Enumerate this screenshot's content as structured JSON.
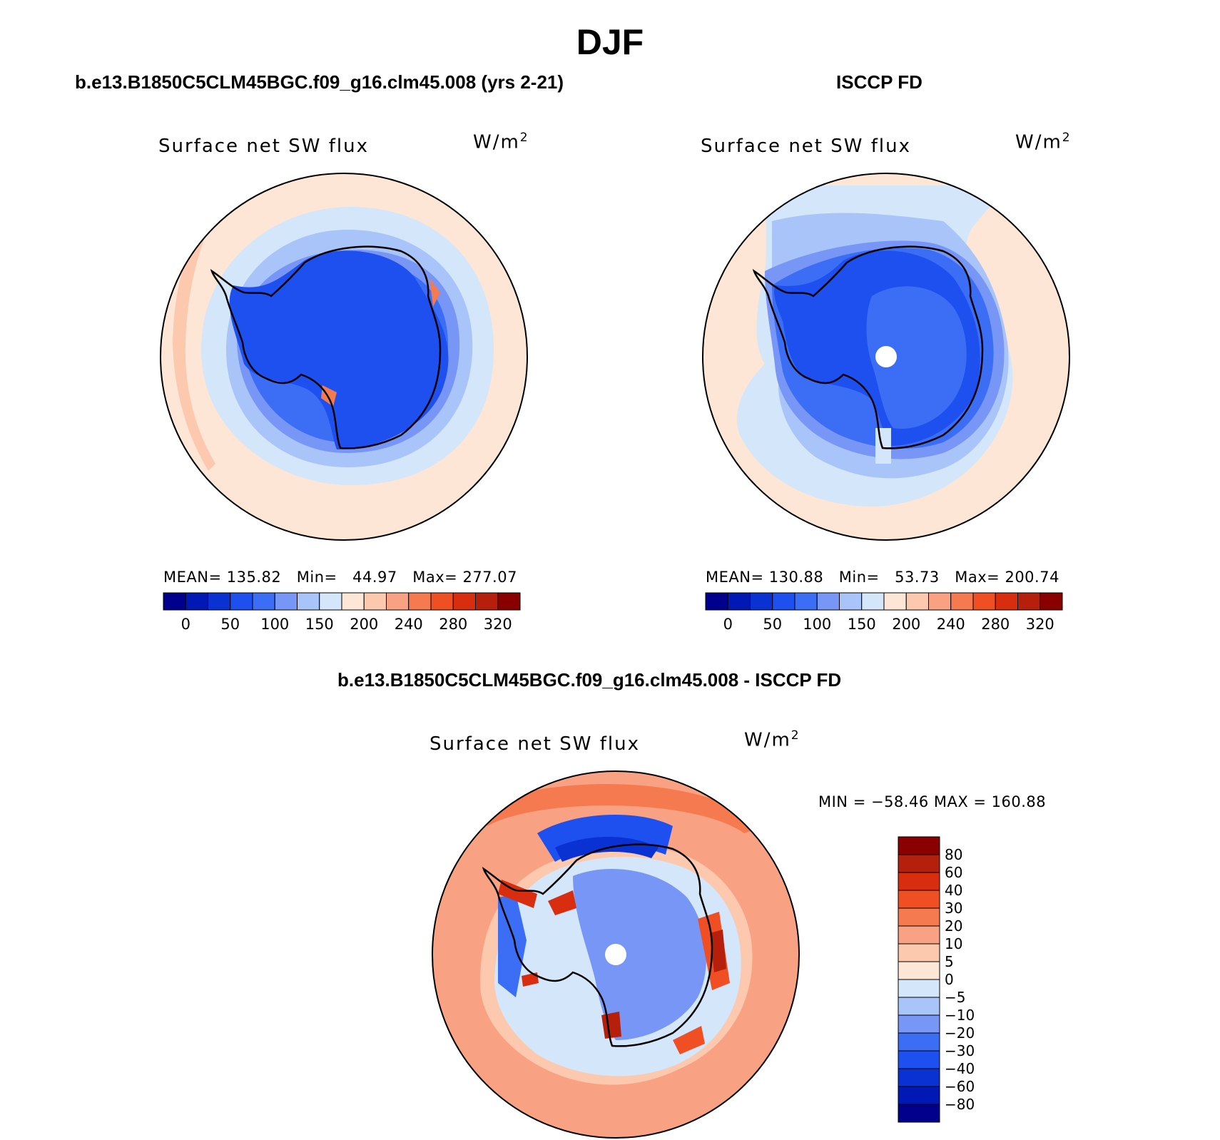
{
  "figure": {
    "title": "DJF"
  },
  "panels": [
    {
      "case_title": "b.e13.B1850C5CLM45BGC.f09_g16.clm45.008 (yrs 2-21)",
      "variable": "Surface net SW flux",
      "units_base": "W/m",
      "units_exp": "2",
      "stats": "MEAN= 135.82   Min=   44.97   Max= 277.07"
    },
    {
      "case_title": "ISCCP FD",
      "variable": "Surface net SW flux",
      "units_base": "W/m",
      "units_exp": "2",
      "stats": "MEAN= 130.88   Min=   53.73   Max= 200.74"
    },
    {
      "case_title": "b.e13.B1850C5CLM45BGC.f09_g16.clm45.008 - ISCCP FD",
      "variable": "Surface net SW flux",
      "units_base": "W/m",
      "units_exp": "2",
      "stats": "MIN = −58.46 MAX = 160.88"
    }
  ],
  "colorbars": {
    "absolute": {
      "colors": [
        "#00008c",
        "#0018b4",
        "#0a32d2",
        "#1e50f0",
        "#3c6ef5",
        "#7896f5",
        "#a8c4f8",
        "#d4e6fa",
        "#fde6d6",
        "#fcc8ae",
        "#f9a283",
        "#f67a50",
        "#f04f23",
        "#d92d10",
        "#b51f0c",
        "#8a0000"
      ],
      "ticks": [
        "0",
        "50",
        "100",
        "150",
        "200",
        "240",
        "280",
        "320"
      ]
    },
    "difference": {
      "colors": [
        "#8a0000",
        "#b51f0c",
        "#d92d10",
        "#f04f23",
        "#f67a50",
        "#f9a283",
        "#fcc8ae",
        "#fde6d6",
        "#d4e6fa",
        "#a8c4f8",
        "#7896f5",
        "#3c6ef5",
        "#1e50f0",
        "#0a32d2",
        "#0018b4",
        "#00008c"
      ],
      "ticks": [
        "80",
        "60",
        "40",
        "30",
        "20",
        "10",
        "5",
        "0",
        "−5",
        "−10",
        "−20",
        "−30",
        "−40",
        "−60",
        "−80"
      ]
    }
  }
}
